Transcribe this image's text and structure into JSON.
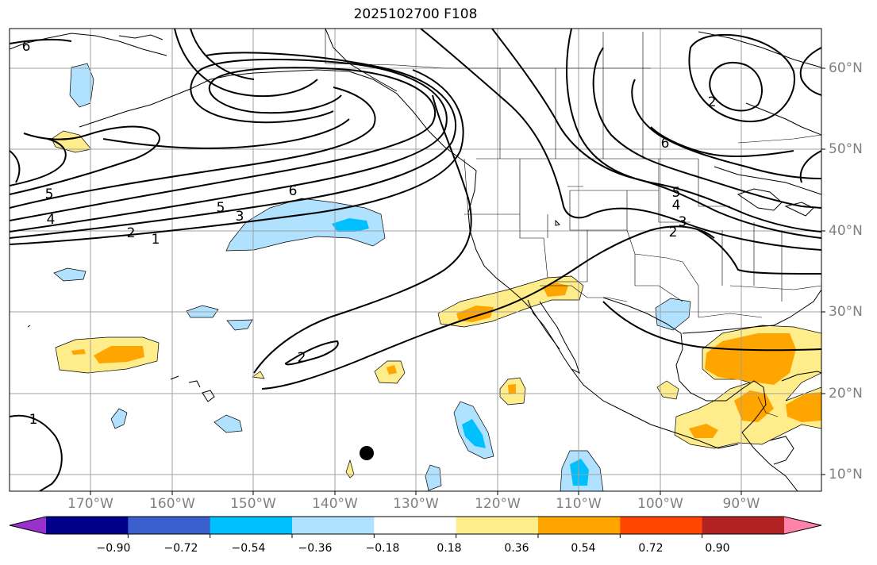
{
  "title": "2025102700 F108",
  "lat_labels": [
    "60°N",
    "50°N",
    "40°N",
    "30°N",
    "20°N",
    "10°N"
  ],
  "lon_labels": [
    "170°W",
    "160°W",
    "150°W",
    "140°W",
    "130°W",
    "120°W",
    "110°W",
    "100°W",
    "90°W"
  ],
  "contour_labels": [
    "6",
    "5",
    "4",
    "3",
    "2",
    "1",
    "6",
    "5",
    "2",
    "2",
    "6",
    "5",
    "4",
    "3",
    "2",
    "1"
  ],
  "colorbar": {
    "ticks": [
      "−0.90",
      "−0.72",
      "−0.54",
      "−0.36",
      "−0.18",
      "0.18",
      "0.36",
      "0.54",
      "0.72",
      "0.90"
    ],
    "colors": [
      "#9932cc",
      "#00008b",
      "#3a5fcd",
      "#00bfff",
      "#b0e2ff",
      "#ffffff",
      "#ffec8b",
      "#ffa500",
      "#ff4500",
      "#b22222",
      "#ff82ab"
    ]
  },
  "storm_marker": "storm-position-dot"
}
